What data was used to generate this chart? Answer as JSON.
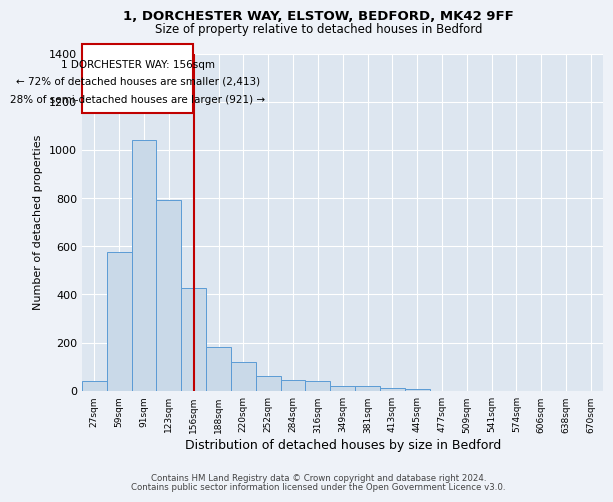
{
  "title_line1": "1, DORCHESTER WAY, ELSTOW, BEDFORD, MK42 9FF",
  "title_line2": "Size of property relative to detached houses in Bedford",
  "xlabel": "Distribution of detached houses by size in Bedford",
  "ylabel": "Number of detached properties",
  "categories": [
    "27sqm",
    "59sqm",
    "91sqm",
    "123sqm",
    "156sqm",
    "188sqm",
    "220sqm",
    "252sqm",
    "284sqm",
    "316sqm",
    "349sqm",
    "381sqm",
    "413sqm",
    "445sqm",
    "477sqm",
    "509sqm",
    "541sqm",
    "574sqm",
    "606sqm",
    "638sqm",
    "670sqm"
  ],
  "values": [
    40,
    575,
    1040,
    790,
    425,
    180,
    120,
    60,
    45,
    40,
    20,
    20,
    10,
    8,
    0,
    0,
    0,
    0,
    0,
    0,
    0
  ],
  "bar_color": "#c9d9e8",
  "bar_edge_color": "#5b9bd5",
  "reference_line_idx": 4,
  "reference_line_color": "#c00000",
  "annotation_line1": "1 DORCHESTER WAY: 156sqm",
  "annotation_line2": "← 72% of detached houses are smaller (2,413)",
  "annotation_line3": "28% of semi-detached houses are larger (921) →",
  "annotation_box_color": "#c00000",
  "ylim": [
    0,
    1400
  ],
  "yticks": [
    0,
    200,
    400,
    600,
    800,
    1000,
    1200,
    1400
  ],
  "footnote1": "Contains HM Land Registry data © Crown copyright and database right 2024.",
  "footnote2": "Contains public sector information licensed under the Open Government Licence v3.0.",
  "bg_color": "#eef2f8",
  "plot_bg_color": "#dde6f0"
}
